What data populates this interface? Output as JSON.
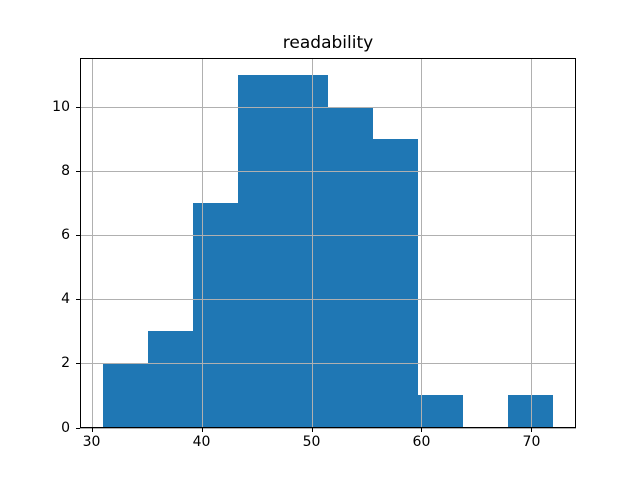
{
  "figure": {
    "background": "#ffffff"
  },
  "chart_data": {
    "type": "bar",
    "subtype": "histogram",
    "title": "readability",
    "xlabel": "",
    "ylabel": "",
    "bin_edges": [
      31.0,
      35.1,
      39.2,
      43.3,
      47.4,
      51.5,
      55.6,
      59.7,
      63.8,
      67.9,
      72.0
    ],
    "counts": [
      2,
      3,
      7,
      11,
      11,
      10,
      9,
      1,
      0,
      1
    ],
    "xticks": [
      30,
      40,
      50,
      60,
      70
    ],
    "yticks": [
      0,
      2,
      4,
      6,
      8,
      10
    ],
    "xlim": [
      28.95,
      74.05
    ],
    "ylim": [
      0,
      11.55
    ],
    "grid": true,
    "grid_above_bars": true,
    "legend": "none",
    "bar_color": "#1f77b4",
    "grid_color": "#b0b0b0",
    "spine_color": "#000000",
    "text_color": "#000000"
  }
}
